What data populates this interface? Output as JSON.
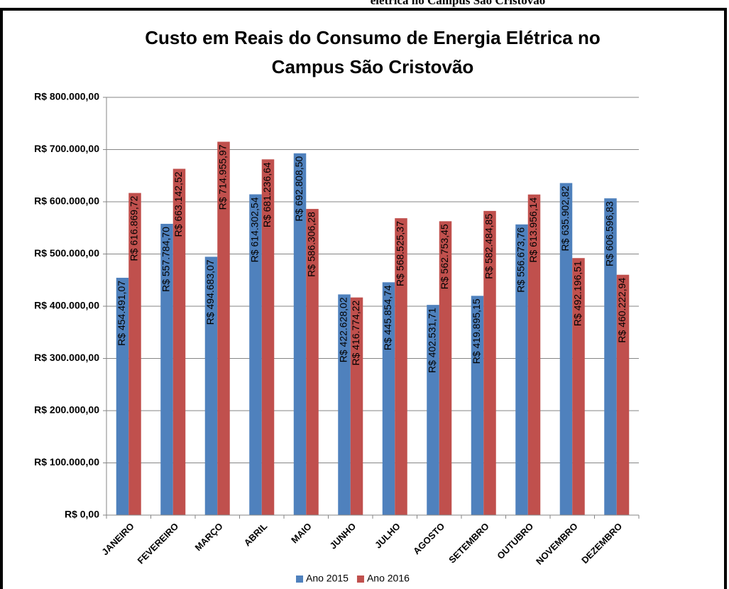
{
  "header": "elétrica no Campus São Cristóvão",
  "chart_data": {
    "type": "bar",
    "title": [
      "Custo em Reais do Consumo de Energia Elétrica no",
      "Campus São Cristovão"
    ],
    "categories": [
      "JANEIRO",
      "FEVEREIRO",
      "MARÇO",
      "ABRIL",
      "MAIO",
      "JUNHO",
      "JULHO",
      "AGOSTO",
      "SETEMBRO",
      "OUTUBRO",
      "NOVEMBRO",
      "DEZEMBRO"
    ],
    "series": [
      {
        "name": "Ano 2015",
        "color": "#4f81bd",
        "values": [
          454491.07,
          557784.7,
          494683.07,
          614302.54,
          692808.5,
          422628.02,
          445854.74,
          402531.71,
          419895.15,
          556673.76,
          635902.82,
          606596.83
        ],
        "value_labels": [
          "R$ 454.491,07",
          "R$ 557.784,70",
          "R$ 494.683,07",
          "R$ 614.302,54",
          "R$ 692.808,50",
          "R$ 422.628,02",
          "R$ 445.854,74",
          "R$ 402.531,71",
          "R$ 419.895,15",
          "R$ 556.673,76",
          "R$ 635.902,82",
          "R$ 606.596,83"
        ]
      },
      {
        "name": "Ano 2016",
        "color": "#c0504d",
        "values": [
          616869.72,
          663142.52,
          714955.97,
          681236.64,
          586306.28,
          416774.22,
          568525.37,
          562753.45,
          582484.85,
          613956.14,
          492196.51,
          460222.94
        ],
        "value_labels": [
          "R$ 616.869,72",
          "R$ 663.142,52",
          "R$ 714.955,97",
          "R$ 681.236,64",
          "R$ 586.306,28",
          "R$ 416.774,22",
          "R$ 568.525,37",
          "R$ 562.753,45",
          "R$ 582.484,85",
          "R$ 613.956,14",
          "R$ 492.196,51",
          "R$ 460.222,94"
        ]
      }
    ],
    "ylim": [
      0,
      800000
    ],
    "yticks": [
      {
        "value": 0,
        "label": "R$ 0,00"
      },
      {
        "value": 100000,
        "label": "R$ 100.000,00"
      },
      {
        "value": 200000,
        "label": "R$ 200.000,00"
      },
      {
        "value": 300000,
        "label": "R$ 300.000,00"
      },
      {
        "value": 400000,
        "label": "R$ 400.000,00"
      },
      {
        "value": 500000,
        "label": "R$ 500.000,00"
      },
      {
        "value": 600000,
        "label": "R$ 600.000,00"
      },
      {
        "value": 700000,
        "label": "R$ 700.000,00"
      },
      {
        "value": 800000,
        "label": "R$ 800.000,00"
      }
    ],
    "grid": true,
    "legend": "bottom"
  }
}
